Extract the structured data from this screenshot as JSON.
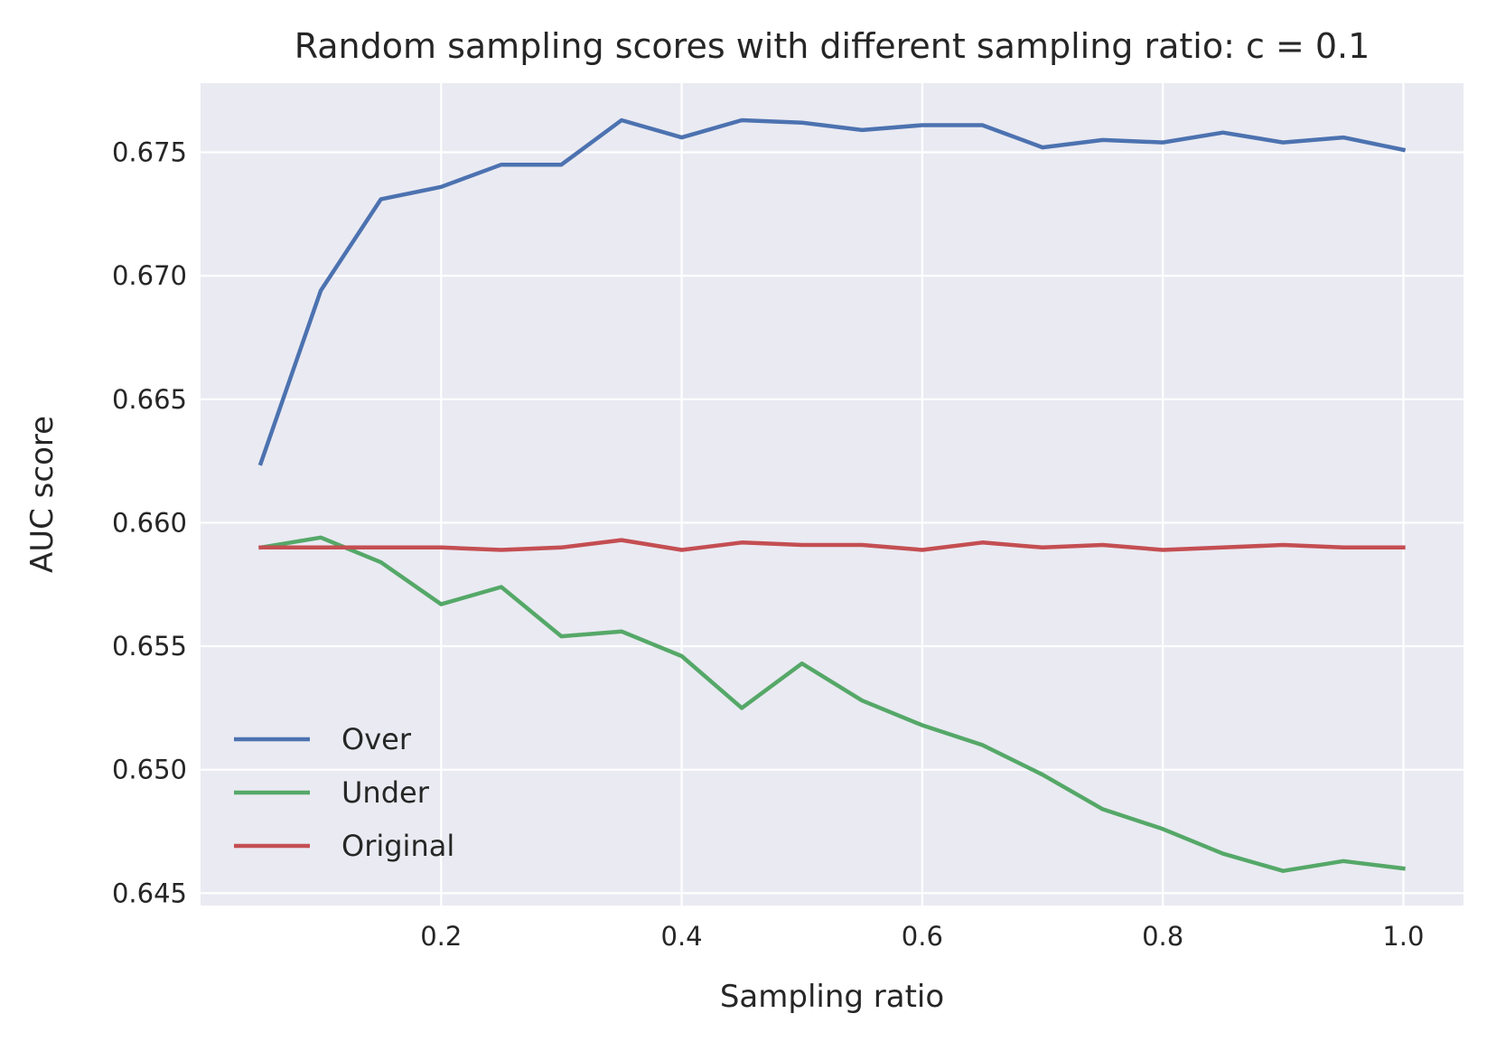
{
  "chart_data": {
    "type": "line",
    "title": "Random sampling scores with different sampling ratio: c = 0.1",
    "xlabel": "Sampling ratio",
    "ylabel": "AUC score",
    "xlim": [
      0.0,
      1.05
    ],
    "ylim": [
      0.6445,
      0.6778
    ],
    "x_ticks": [
      0.2,
      0.4,
      0.6,
      0.8,
      1.0
    ],
    "x_tick_labels": [
      "0.2",
      "0.4",
      "0.6",
      "0.8",
      "1.0"
    ],
    "y_ticks": [
      0.645,
      0.65,
      0.655,
      0.66,
      0.665,
      0.67,
      0.675
    ],
    "y_tick_labels": [
      "0.645",
      "0.650",
      "0.655",
      "0.660",
      "0.665",
      "0.670",
      "0.675"
    ],
    "grid": true,
    "background": "#EAEAF2",
    "legend_position": "lower-left",
    "x": [
      0.05,
      0.1,
      0.15,
      0.2,
      0.25,
      0.3,
      0.35,
      0.4,
      0.45,
      0.5,
      0.55,
      0.6,
      0.65,
      0.7,
      0.75,
      0.8,
      0.85,
      0.9,
      0.95,
      1.0
    ],
    "series": [
      {
        "name": "Over",
        "color": "#4C72B0",
        "values": [
          0.6624,
          0.6694,
          0.6731,
          0.6736,
          0.6745,
          0.6745,
          0.6763,
          0.6756,
          0.6763,
          0.6762,
          0.6759,
          0.6761,
          0.6761,
          0.6752,
          0.6755,
          0.6754,
          0.6758,
          0.6754,
          0.6756,
          0.6751
        ]
      },
      {
        "name": "Under",
        "color": "#55A868",
        "values": [
          0.659,
          0.6594,
          0.6584,
          0.6567,
          0.6574,
          0.6554,
          0.6556,
          0.6546,
          0.6525,
          0.6543,
          0.6528,
          0.6518,
          0.651,
          0.6498,
          0.6484,
          0.6476,
          0.6466,
          0.6459,
          0.6463,
          0.646
        ]
      },
      {
        "name": "Original",
        "color": "#C44E52",
        "values": [
          0.659,
          0.659,
          0.659,
          0.659,
          0.6589,
          0.659,
          0.6593,
          0.6589,
          0.6592,
          0.6591,
          0.6591,
          0.6589,
          0.6592,
          0.659,
          0.6591,
          0.6589,
          0.659,
          0.6591,
          0.659,
          0.659
        ]
      }
    ]
  }
}
